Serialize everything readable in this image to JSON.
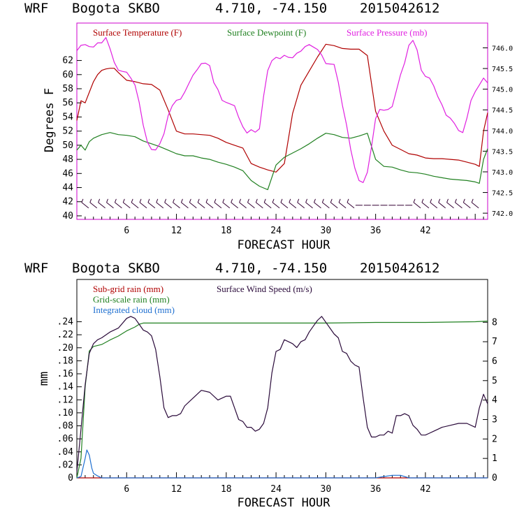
{
  "chart_data": [
    {
      "type": "line",
      "header": {
        "model": "WRF",
        "station": "Bogota SKBO",
        "coords": "4.710, -74.150",
        "run": "2015042612"
      },
      "xlabel": "FORECAST HOUR",
      "ylabel": "Degrees F",
      "xlim": [
        0,
        49.5
      ],
      "xticks": [
        "6",
        "12",
        "18",
        "24",
        "30",
        "36",
        "42"
      ],
      "ylim": [
        39.5,
        67.3
      ],
      "yticks": [
        "40",
        "42",
        "44",
        "46",
        "48",
        "50",
        "52",
        "54",
        "56",
        "58",
        "60",
        "62"
      ],
      "y2lim": [
        741.85,
        746.6
      ],
      "y2ticks": [
        "742.0",
        "742.5",
        "743.0",
        "743.5",
        "744.0",
        "744.5",
        "745.0",
        "745.5",
        "746.0"
      ],
      "colors": {
        "frame": "#cc00cc",
        "barbs": "#330033"
      },
      "wind_barbs_y": 41.5,
      "series": [
        {
          "name": "Surface Temperature (F)",
          "color": "#b00000",
          "axis": "left",
          "x": [
            0,
            0.5,
            1,
            1.5,
            2,
            2.5,
            3,
            3.5,
            4,
            4.5,
            5,
            6,
            7,
            8,
            9,
            10,
            11,
            12,
            13,
            14,
            15,
            16,
            17,
            18,
            19,
            20,
            21,
            22,
            23,
            24,
            25,
            26,
            27,
            28,
            29,
            30,
            31,
            32,
            33,
            34,
            35,
            36,
            37,
            38,
            39,
            40,
            41,
            42,
            43,
            44,
            45,
            46,
            47,
            48,
            48.5,
            49,
            49.5
          ],
          "y": [
            53.5,
            56.3,
            56.0,
            57.5,
            59.0,
            60.0,
            60.6,
            60.8,
            60.9,
            60.9,
            60.3,
            59.2,
            59.0,
            58.7,
            58.6,
            57.8,
            55.0,
            52.0,
            51.6,
            51.6,
            51.5,
            51.4,
            51.0,
            50.4,
            50.0,
            49.6,
            47.4,
            46.9,
            46.5,
            46.2,
            47.4,
            54.5,
            58.5,
            60.5,
            62.5,
            64.3,
            64.1,
            63.7,
            63.6,
            63.6,
            62.7,
            54.8,
            52.0,
            50.0,
            49.4,
            48.8,
            48.6,
            48.2,
            48.1,
            48.1,
            48.0,
            47.9,
            47.6,
            47.3,
            47.0,
            52.0,
            54.6
          ]
        },
        {
          "name": "Surface Dewpoint (F)",
          "color": "#208020",
          "axis": "left",
          "x": [
            0,
            0.5,
            1,
            1.5,
            2,
            3,
            4,
            5,
            6,
            7,
            8,
            9,
            10,
            11,
            12,
            13,
            14,
            15,
            16,
            17,
            18,
            19,
            20,
            21,
            22,
            23,
            24,
            25,
            26,
            27,
            28,
            29,
            30,
            31,
            32,
            33,
            34,
            35,
            36,
            37,
            38,
            39,
            40,
            41,
            42,
            43,
            44,
            45,
            46,
            47,
            48,
            48.5,
            49,
            49.5
          ],
          "y": [
            49.3,
            50.0,
            49.3,
            50.5,
            51.0,
            51.5,
            51.8,
            51.5,
            51.4,
            51.2,
            50.6,
            50.2,
            49.8,
            49.3,
            48.8,
            48.5,
            48.5,
            48.2,
            48.0,
            47.6,
            47.3,
            46.9,
            46.4,
            45.0,
            44.2,
            43.7,
            47.2,
            48.3,
            48.9,
            49.5,
            50.2,
            51.0,
            51.7,
            51.5,
            51.1,
            51.0,
            51.3,
            51.7,
            48.0,
            47.0,
            46.9,
            46.5,
            46.2,
            46.1,
            45.9,
            45.6,
            45.4,
            45.2,
            45.1,
            45.0,
            44.8,
            44.6,
            48.0,
            49.5
          ]
        },
        {
          "name": "Surface Pressure (mb)",
          "color": "#e020e0",
          "axis": "right",
          "x": [
            0,
            0.5,
            1,
            1.5,
            2,
            2.5,
            3,
            3.5,
            4,
            4.5,
            5,
            5.5,
            6,
            6.5,
            7,
            7.5,
            8,
            8.5,
            9,
            9.5,
            10,
            10.5,
            11,
            11.5,
            12,
            12.5,
            13,
            13.5,
            14,
            14.5,
            15,
            15.5,
            16,
            16.5,
            17,
            17.5,
            18,
            18.5,
            19,
            19.5,
            20,
            20.5,
            21,
            21.5,
            22,
            22.5,
            23,
            23.5,
            24,
            24.5,
            25,
            25.5,
            26,
            26.5,
            27,
            27.5,
            28,
            28.5,
            29,
            29.5,
            30,
            30.5,
            31,
            31.5,
            32,
            32.5,
            33,
            33.5,
            34,
            34.5,
            35,
            35.5,
            36,
            36.5,
            37,
            37.5,
            38,
            38.5,
            39,
            39.5,
            40,
            40.5,
            41,
            41.5,
            42,
            42.5,
            43,
            43.5,
            44,
            44.5,
            45,
            45.5,
            46,
            46.5,
            47,
            47.5,
            48,
            48.5,
            49,
            49.5
          ],
          "y": [
            745.93,
            746.06,
            746.08,
            746.03,
            746.02,
            746.12,
            746.12,
            746.25,
            745.98,
            745.65,
            745.46,
            745.43,
            745.41,
            745.27,
            745.1,
            744.69,
            744.13,
            743.72,
            743.54,
            743.53,
            743.68,
            743.92,
            744.36,
            744.6,
            744.73,
            744.76,
            744.93,
            745.14,
            745.34,
            745.47,
            745.62,
            745.63,
            745.57,
            745.16,
            744.99,
            744.73,
            744.68,
            744.64,
            744.6,
            744.32,
            744.09,
            743.94,
            744.02,
            743.96,
            744.04,
            744.83,
            745.45,
            745.69,
            745.77,
            745.74,
            745.82,
            745.77,
            745.76,
            745.87,
            745.92,
            746.03,
            746.08,
            746.02,
            745.96,
            745.83,
            745.62,
            745.61,
            745.6,
            745.17,
            744.61,
            744.13,
            743.54,
            743.09,
            742.79,
            742.74,
            742.99,
            743.6,
            744.29,
            744.51,
            744.49,
            744.51,
            744.58,
            744.96,
            745.35,
            745.64,
            746.06,
            746.18,
            745.95,
            745.46,
            745.31,
            745.27,
            745.08,
            744.82,
            744.62,
            744.37,
            744.3,
            744.17,
            744.0,
            743.95,
            744.3,
            744.73,
            744.94,
            745.1,
            745.27,
            745.15
          ]
        }
      ]
    },
    {
      "type": "line",
      "header": {
        "model": "WRF",
        "station": "Bogota SKBO",
        "coords": "4.710, -74.150",
        "run": "2015042612"
      },
      "xlabel": "FORECAST HOUR",
      "ylabel": "mm",
      "xlim": [
        0,
        49.5
      ],
      "xticks": [
        "6",
        "12",
        "18",
        "24",
        "30",
        "36",
        "42"
      ],
      "ylim": [
        0,
        0.305
      ],
      "yticks": [
        "0",
        ".02",
        ".04",
        ".06",
        ".08",
        ".10",
        ".12",
        ".14",
        ".16",
        ".18",
        ".20",
        ".22",
        ".24"
      ],
      "y2lim": [
        0,
        10.2
      ],
      "y2ticks": [
        "0",
        "1",
        "2",
        "3",
        "4",
        "5",
        "6",
        "7",
        "8"
      ],
      "colors": {
        "frame": "#000000"
      },
      "series": [
        {
          "name": "Sub-grid rain (mm)",
          "color": "#b00000",
          "axis": "left",
          "x": [
            0,
            49.5
          ],
          "y": [
            0,
            0
          ]
        },
        {
          "name": "Grid-scale rain (mm)",
          "color": "#208020",
          "axis": "left",
          "x": [
            0,
            0.5,
            1,
            1.5,
            2,
            3,
            4,
            5,
            6,
            7,
            7.5,
            8,
            9,
            12,
            18,
            24,
            30,
            36,
            42,
            48,
            49.5
          ],
          "y": [
            0,
            0.03,
            0.14,
            0.195,
            0.202,
            0.205,
            0.212,
            0.218,
            0.226,
            0.232,
            0.236,
            0.238,
            0.238,
            0.238,
            0.238,
            0.238,
            0.238,
            0.239,
            0.239,
            0.24,
            0.241
          ]
        },
        {
          "name": "Integrated cloud (mm)",
          "color": "#1e6fd0",
          "axis": "left",
          "x": [
            0,
            0.5,
            1,
            1.2,
            1.5,
            1.8,
            2.0,
            2.5,
            3,
            36,
            37,
            38,
            39,
            40,
            49.5
          ],
          "y": [
            0,
            0.002,
            0.03,
            0.043,
            0.035,
            0.015,
            0.007,
            0.003,
            0,
            0,
            0.002,
            0.004,
            0.004,
            0,
            0
          ]
        },
        {
          "name": "Surface Wind Speed (m/s)",
          "color": "#2a0a3a",
          "axis": "right",
          "x": [
            0,
            0.5,
            1,
            1.5,
            2,
            2.5,
            3,
            4,
            5,
            6,
            6.5,
            7,
            7.5,
            8,
            8.5,
            9,
            9.5,
            10,
            10.5,
            11,
            11.5,
            12,
            12.5,
            13,
            14,
            15,
            16,
            17,
            18,
            18.5,
            19,
            19.5,
            20,
            20.5,
            21,
            21.5,
            22,
            22.5,
            23,
            23.5,
            24,
            24.5,
            25,
            25.5,
            26,
            26.5,
            27,
            27.5,
            28,
            28.5,
            29,
            29.5,
            30,
            30.5,
            31,
            31.5,
            32,
            32.5,
            33,
            33.5,
            34,
            34.5,
            35,
            35.5,
            36,
            36.5,
            37,
            37.5,
            38,
            38.5,
            39,
            39.5,
            40,
            40.5,
            41,
            41.5,
            42,
            42.5,
            43,
            43.5,
            44,
            45,
            46,
            47,
            48,
            48.5,
            49,
            49.5
          ],
          "y": [
            0.3,
            2.5,
            4.8,
            6.4,
            6.9,
            7.1,
            7.2,
            7.5,
            7.7,
            8.2,
            8.3,
            8.2,
            7.9,
            7.6,
            7.5,
            7.3,
            6.6,
            5.2,
            3.6,
            3.1,
            3.2,
            3.2,
            3.3,
            3.7,
            4.1,
            4.5,
            4.4,
            4.0,
            4.2,
            4.2,
            3.6,
            3.0,
            2.9,
            2.6,
            2.6,
            2.4,
            2.5,
            2.8,
            3.6,
            5.4,
            6.5,
            6.6,
            7.1,
            7.0,
            6.9,
            6.7,
            7.0,
            7.1,
            7.5,
            7.8,
            8.1,
            8.3,
            8.0,
            7.7,
            7.4,
            7.2,
            6.5,
            6.4,
            6.0,
            5.8,
            5.7,
            4.1,
            2.6,
            2.1,
            2.1,
            2.2,
            2.2,
            2.4,
            2.3,
            3.2,
            3.2,
            3.3,
            3.2,
            2.7,
            2.5,
            2.2,
            2.2,
            2.3,
            2.4,
            2.5,
            2.6,
            2.7,
            2.8,
            2.8,
            2.6,
            3.6,
            4.3,
            3.8
          ]
        }
      ]
    }
  ]
}
